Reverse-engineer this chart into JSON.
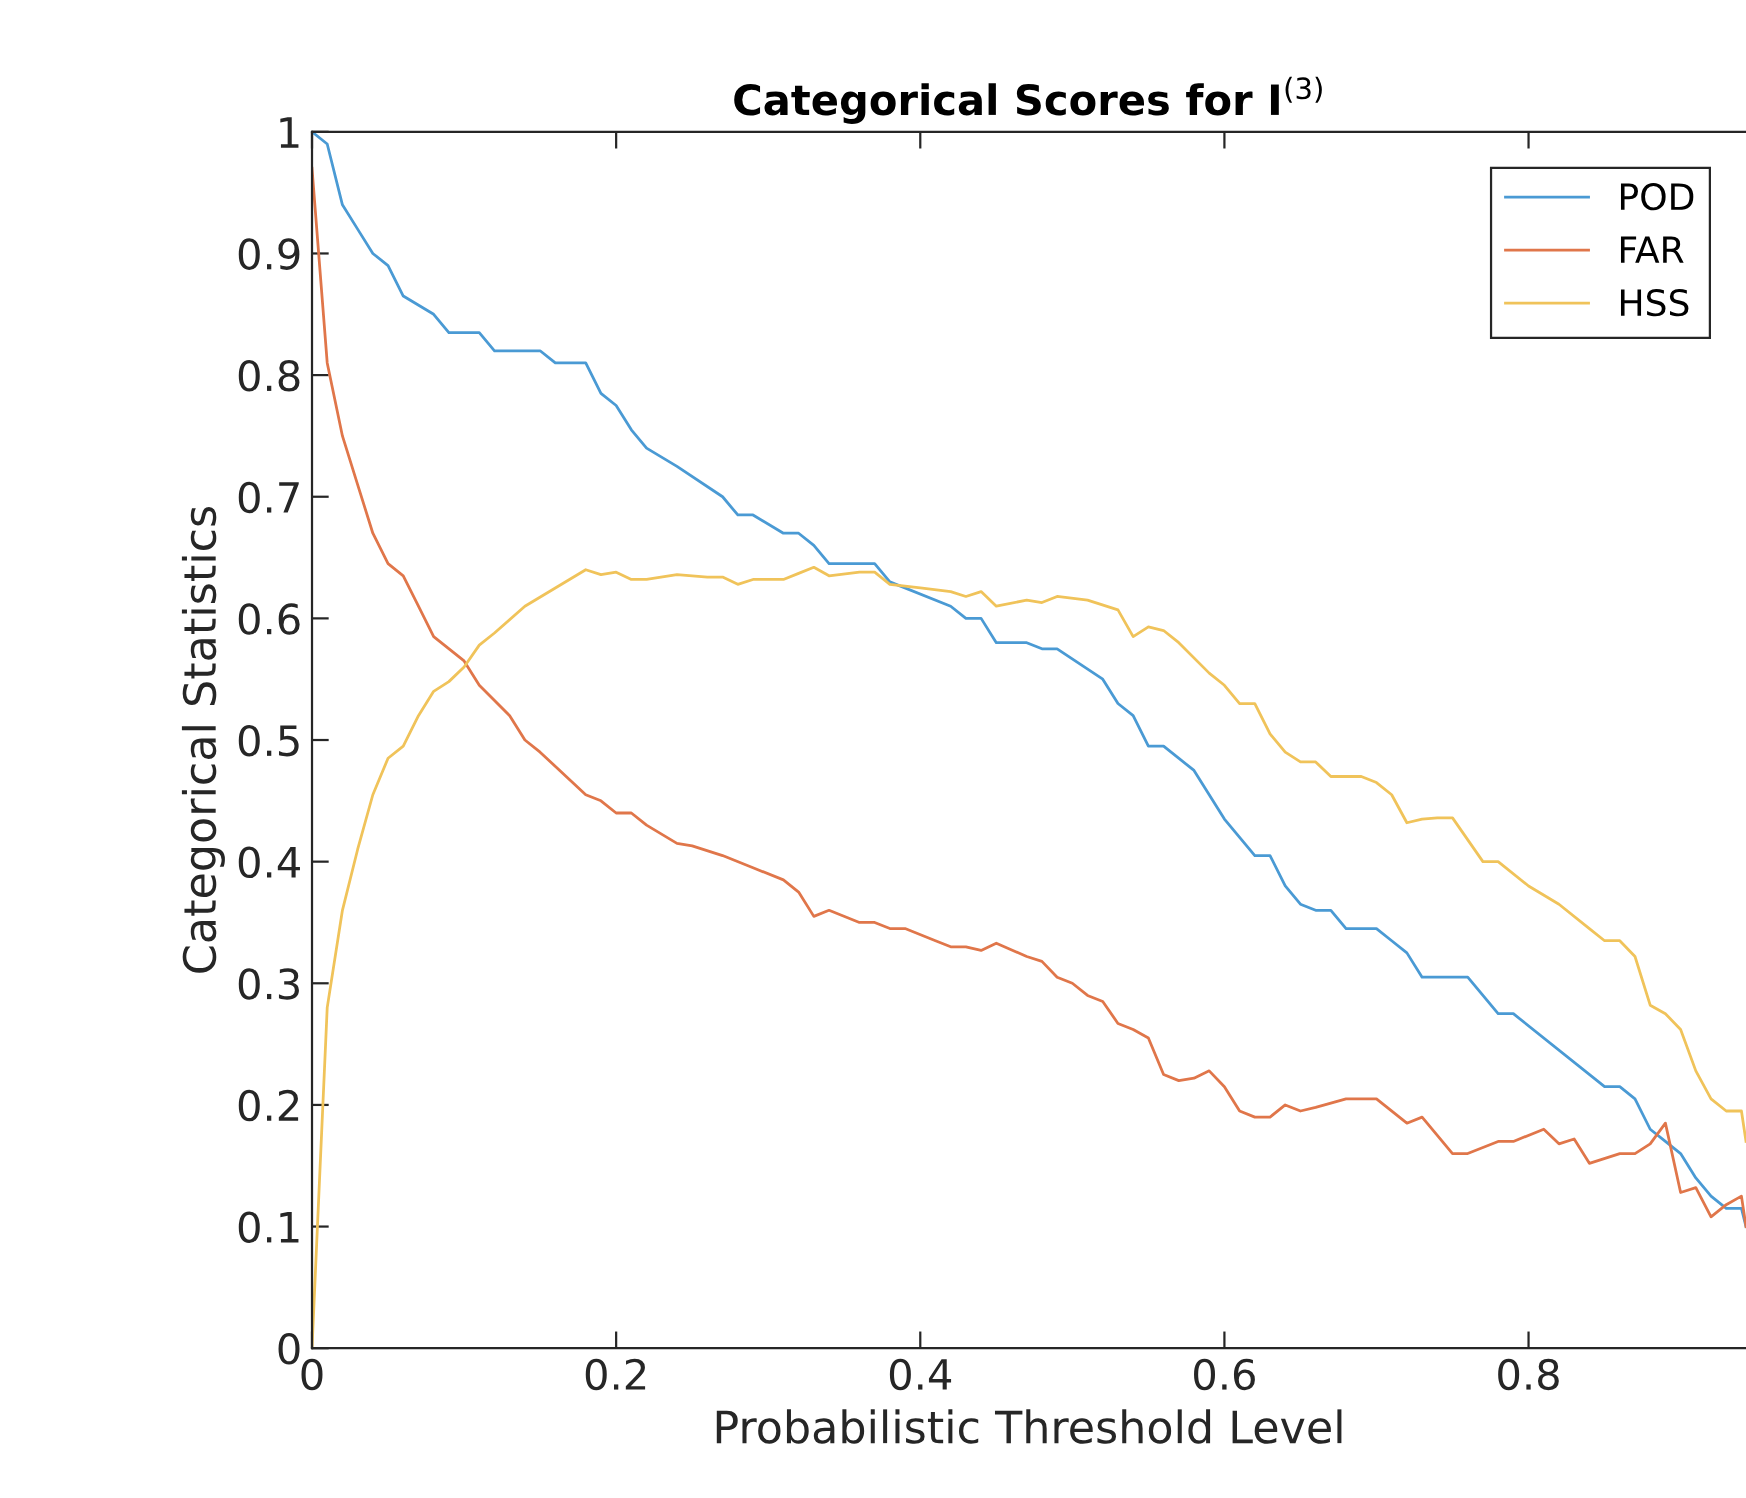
{
  "chart_data": {
    "type": "line",
    "title": "Categorical Scores for I$^{(3)}$",
    "xlabel": "Probabilistic Threshold Level",
    "ylabel": "Categorical Statistics",
    "xlim": [
      0,
      0.943
    ],
    "xticks": [
      0,
      0.2,
      0.4,
      0.6,
      0.8
    ],
    "ylim": [
      0,
      1
    ],
    "yticks": [
      0,
      0.1,
      0.2,
      0.3,
      0.4,
      0.5,
      0.6,
      0.7,
      0.8,
      0.9,
      1
    ],
    "grid": false,
    "legend": "top right",
    "marker": "none",
    "line_style": "solid",
    "series": [
      {
        "name": "POD",
        "color": "#4a9ad4",
        "x": [
          0,
          0.01,
          0.02,
          0.03,
          0.04,
          0.05,
          0.06,
          0.08,
          0.09,
          0.11,
          0.12,
          0.15,
          0.16,
          0.18,
          0.19,
          0.2,
          0.21,
          0.22,
          0.24,
          0.27,
          0.28,
          0.29,
          0.31,
          0.32,
          0.33,
          0.34,
          0.37,
          0.38,
          0.42,
          0.43,
          0.44,
          0.45,
          0.47,
          0.48,
          0.49,
          0.52,
          0.53,
          0.54,
          0.55,
          0.56,
          0.58,
          0.59,
          0.6,
          0.62,
          0.63,
          0.64,
          0.65,
          0.66,
          0.67,
          0.68,
          0.7,
          0.71,
          0.72,
          0.73,
          0.76,
          0.78,
          0.79,
          0.85,
          0.86,
          0.87,
          0.88,
          0.89,
          0.9,
          0.91,
          0.92,
          0.93,
          0.94,
          0.943
        ],
        "values": [
          1,
          0.99,
          0.94,
          0.92,
          0.9,
          0.89,
          0.865,
          0.85,
          0.835,
          0.835,
          0.82,
          0.82,
          0.81,
          0.81,
          0.785,
          0.775,
          0.755,
          0.74,
          0.725,
          0.7,
          0.685,
          0.685,
          0.67,
          0.67,
          0.66,
          0.645,
          0.645,
          0.63,
          0.61,
          0.6,
          0.6,
          0.58,
          0.58,
          0.575,
          0.575,
          0.55,
          0.53,
          0.52,
          0.495,
          0.495,
          0.475,
          0.455,
          0.435,
          0.405,
          0.405,
          0.38,
          0.365,
          0.36,
          0.36,
          0.345,
          0.345,
          0.335,
          0.325,
          0.305,
          0.305,
          0.275,
          0.275,
          0.215,
          0.215,
          0.205,
          0.18,
          0.17,
          0.16,
          0.14,
          0.125,
          0.115,
          0.115,
          0.1
        ]
      },
      {
        "name": "FAR",
        "color": "#e0764a",
        "x": [
          0,
          0.01,
          0.02,
          0.03,
          0.04,
          0.05,
          0.06,
          0.07,
          0.08,
          0.1,
          0.11,
          0.13,
          0.14,
          0.15,
          0.18,
          0.19,
          0.2,
          0.21,
          0.22,
          0.24,
          0.25,
          0.27,
          0.29,
          0.31,
          0.32,
          0.33,
          0.34,
          0.36,
          0.37,
          0.38,
          0.39,
          0.41,
          0.42,
          0.43,
          0.44,
          0.45,
          0.47,
          0.48,
          0.49,
          0.5,
          0.51,
          0.52,
          0.53,
          0.54,
          0.55,
          0.56,
          0.57,
          0.58,
          0.59,
          0.6,
          0.61,
          0.62,
          0.63,
          0.64,
          0.65,
          0.66,
          0.68,
          0.7,
          0.72,
          0.73,
          0.75,
          0.76,
          0.78,
          0.79,
          0.81,
          0.82,
          0.83,
          0.84,
          0.86,
          0.87,
          0.88,
          0.89,
          0.9,
          0.91,
          0.92,
          0.93,
          0.94,
          0.943
        ],
        "values": [
          0.97,
          0.81,
          0.75,
          0.71,
          0.67,
          0.645,
          0.635,
          0.61,
          0.585,
          0.565,
          0.545,
          0.52,
          0.5,
          0.49,
          0.455,
          0.45,
          0.44,
          0.44,
          0.43,
          0.415,
          0.413,
          0.405,
          0.395,
          0.385,
          0.375,
          0.355,
          0.36,
          0.35,
          0.35,
          0.345,
          0.345,
          0.335,
          0.33,
          0.33,
          0.327,
          0.333,
          0.322,
          0.318,
          0.305,
          0.3,
          0.29,
          0.285,
          0.267,
          0.262,
          0.255,
          0.225,
          0.22,
          0.222,
          0.228,
          0.215,
          0.195,
          0.19,
          0.19,
          0.2,
          0.195,
          0.198,
          0.205,
          0.205,
          0.185,
          0.19,
          0.16,
          0.16,
          0.17,
          0.17,
          0.18,
          0.168,
          0.172,
          0.152,
          0.16,
          0.16,
          0.168,
          0.185,
          0.128,
          0.132,
          0.108,
          0.118,
          0.125,
          0.1
        ]
      },
      {
        "name": "HSS",
        "color": "#f0c35a",
        "x": [
          0,
          0.01,
          0.02,
          0.03,
          0.04,
          0.05,
          0.06,
          0.07,
          0.08,
          0.09,
          0.1,
          0.11,
          0.12,
          0.14,
          0.16,
          0.18,
          0.19,
          0.2,
          0.21,
          0.22,
          0.24,
          0.26,
          0.27,
          0.28,
          0.29,
          0.31,
          0.32,
          0.33,
          0.34,
          0.36,
          0.37,
          0.38,
          0.4,
          0.42,
          0.43,
          0.44,
          0.45,
          0.47,
          0.48,
          0.49,
          0.51,
          0.53,
          0.54,
          0.55,
          0.56,
          0.57,
          0.59,
          0.6,
          0.61,
          0.62,
          0.63,
          0.64,
          0.65,
          0.66,
          0.67,
          0.69,
          0.7,
          0.71,
          0.72,
          0.73,
          0.74,
          0.75,
          0.77,
          0.78,
          0.8,
          0.82,
          0.84,
          0.85,
          0.86,
          0.87,
          0.88,
          0.89,
          0.9,
          0.91,
          0.92,
          0.93,
          0.94,
          0.943
        ],
        "values": [
          0,
          0.28,
          0.36,
          0.41,
          0.455,
          0.485,
          0.495,
          0.52,
          0.54,
          0.548,
          0.56,
          0.578,
          0.588,
          0.61,
          0.625,
          0.64,
          0.636,
          0.638,
          0.632,
          0.632,
          0.636,
          0.634,
          0.634,
          0.628,
          0.632,
          0.632,
          0.637,
          0.642,
          0.635,
          0.638,
          0.638,
          0.628,
          0.625,
          0.622,
          0.618,
          0.622,
          0.61,
          0.615,
          0.613,
          0.618,
          0.615,
          0.607,
          0.585,
          0.593,
          0.59,
          0.58,
          0.555,
          0.545,
          0.53,
          0.53,
          0.505,
          0.49,
          0.482,
          0.482,
          0.47,
          0.47,
          0.465,
          0.455,
          0.432,
          0.435,
          0.436,
          0.436,
          0.4,
          0.4,
          0.38,
          0.365,
          0.345,
          0.335,
          0.335,
          0.322,
          0.282,
          0.275,
          0.262,
          0.228,
          0.205,
          0.195,
          0.195,
          0.17
        ]
      }
    ]
  }
}
